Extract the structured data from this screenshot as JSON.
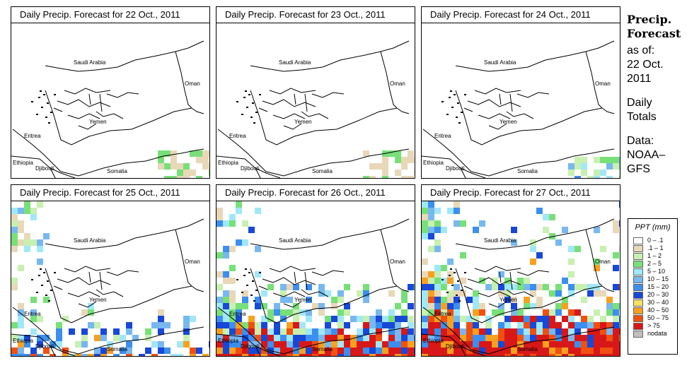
{
  "panels": [
    {
      "title": "Daily Precip. Forecast for  22 Oct., 2011",
      "level": 0
    },
    {
      "title": "Daily Precip. Forecast for  23 Oct., 2011",
      "level": 0
    },
    {
      "title": "Daily Precip. Forecast for  24 Oct., 2011",
      "level": 1
    },
    {
      "title": "Daily Precip. Forecast for  25 Oct., 2011",
      "level": 2
    },
    {
      "title": "Daily Precip. Forecast for  26 Oct., 2011",
      "level": 3
    },
    {
      "title": "Daily Precip. Forecast for  27 Oct., 2011",
      "level": 4
    }
  ],
  "map_labels": {
    "saudi": "Saudi Arabia",
    "oman": "Oman",
    "yemen": "Yemen",
    "eritrea": "Eritrea",
    "ethiopia": "Ethiopia",
    "djibouti": "Djibouti",
    "somalia": "Somalia"
  },
  "side": {
    "heading1": "Precip.",
    "heading2": "Forecast",
    "asof1": "as of:",
    "asof2": "22 Oct.",
    "asof3": "2011",
    "daily1": "Daily",
    "daily2": "Totals",
    "data1": "Data:",
    "data2": "NOAA–",
    "data3": "GFS"
  },
  "legend": {
    "title": "PPT (mm)",
    "items": [
      {
        "label": "0 – .1",
        "color": "#ffffff"
      },
      {
        "label": ".1 – 1",
        "color": "#e8d8b8"
      },
      {
        "label": "1 – 2",
        "color": "#c8f0b0"
      },
      {
        "label": "2 – 5",
        "color": "#78e078"
      },
      {
        "label": "5 – 10",
        "color": "#a0e8f8"
      },
      {
        "label": "10 – 15",
        "color": "#78b8f0"
      },
      {
        "label": "15 – 20",
        "color": "#3c8ef0"
      },
      {
        "label": "20 – 30",
        "color": "#1848d8"
      },
      {
        "label": "30 – 40",
        "color": "#f8e060"
      },
      {
        "label": "40 – 50",
        "color": "#f8a020"
      },
      {
        "label": "50 – 75",
        "color": "#f05010"
      },
      {
        "label": "> 75",
        "color": "#d81818"
      },
      {
        "label": "nodata",
        "color": "#c0c0c0"
      }
    ]
  }
}
